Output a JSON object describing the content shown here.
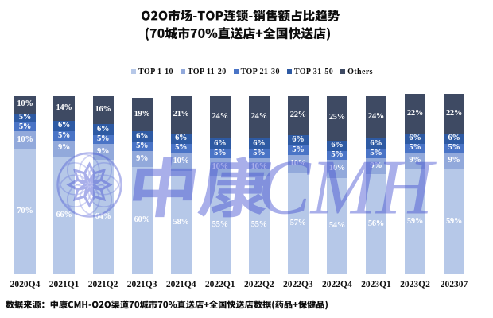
{
  "title": "O2O市场-TOP连锁-销售额占比趋势",
  "subtitle": "(70城市70%直送店+全国快送店)",
  "legend": [
    "TOP 1-10",
    "TOP 11-20",
    "TOP 21-30",
    "TOP 31-50",
    "Others"
  ],
  "watermark_text": "中康CMH",
  "source_note": "数据来源：中康CMH-O2O渠道70城市70%直送店+全国快送店数据(药品+保健品)",
  "colors": {
    "top1_10": "#b6c8e8",
    "top11_20": "#92a9db",
    "top21_30": "#4a74c6",
    "top31_50": "#2e5aa3",
    "others": "#3e4a63",
    "watermark": "#4652d2",
    "background": "#ffffff",
    "text": "#111111"
  },
  "chart_data": {
    "type": "bar",
    "stacked": true,
    "unit": "%",
    "categories": [
      "2020Q4",
      "2021Q1",
      "2021Q2",
      "2021Q3",
      "2021Q4",
      "2022Q1",
      "2022Q2",
      "2022Q3",
      "2022Q4",
      "2023Q1",
      "2023Q2",
      "202307"
    ],
    "series": [
      {
        "name": "TOP 1-10",
        "color": "#b6c8e8",
        "values": [
          70,
          66,
          64,
          60,
          58,
          55,
          55,
          57,
          54,
          56,
          59,
          59
        ]
      },
      {
        "name": "TOP 11-20",
        "color": "#92a9db",
        "values": [
          10,
          9,
          9,
          9,
          10,
          10,
          10,
          10,
          10,
          9,
          9,
          9
        ]
      },
      {
        "name": "TOP 21-30",
        "color": "#4a74c6",
        "values": [
          5,
          5,
          5,
          5,
          5,
          5,
          5,
          5,
          5,
          5,
          5,
          5
        ]
      },
      {
        "name": "TOP 31-50",
        "color": "#2e5aa3",
        "values": [
          5,
          6,
          6,
          6,
          6,
          6,
          6,
          6,
          6,
          6,
          6,
          6
        ]
      },
      {
        "name": "Others",
        "color": "#3e4a63",
        "values": [
          10,
          14,
          16,
          19,
          21,
          24,
          24,
          22,
          25,
          24,
          22,
          22
        ]
      }
    ],
    "legend_position": "top",
    "gridlines": false,
    "ylim": [
      0,
      100
    ]
  }
}
